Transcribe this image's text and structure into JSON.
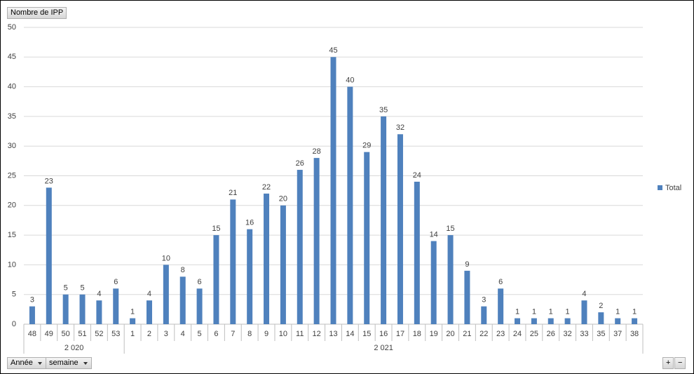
{
  "chart_data": {
    "type": "bar",
    "groups": [
      {
        "label": "2 020",
        "categories": [
          "48",
          "49",
          "50",
          "51",
          "52",
          "53"
        ]
      },
      {
        "label": "2 021",
        "categories": [
          "1",
          "2",
          "3",
          "4",
          "5",
          "6",
          "7",
          "8",
          "9",
          "10",
          "11",
          "12",
          "13",
          "14",
          "15",
          "16",
          "17",
          "18",
          "19",
          "20",
          "21",
          "22",
          "23",
          "24",
          "25",
          "26",
          "32",
          "33",
          "35",
          "37",
          "38"
        ]
      }
    ],
    "series": [
      {
        "name": "Total",
        "color": "#4f81bd",
        "values": [
          3,
          23,
          5,
          5,
          4,
          6,
          1,
          4,
          10,
          8,
          6,
          15,
          21,
          16,
          22,
          20,
          26,
          28,
          45,
          40,
          29,
          35,
          32,
          24,
          14,
          15,
          9,
          3,
          6,
          1,
          1,
          1,
          1,
          4,
          2,
          1,
          1
        ]
      }
    ],
    "ylim": [
      0,
      50
    ],
    "yticks": [
      0,
      5,
      10,
      15,
      20,
      25,
      30,
      35,
      40,
      45,
      50
    ],
    "grid": true,
    "legend": "right"
  },
  "ui": {
    "value_field": "Nombre de IPP",
    "axis_fields": [
      "Année",
      "semaine"
    ],
    "zoom_buttons": [
      "+",
      "−"
    ]
  }
}
